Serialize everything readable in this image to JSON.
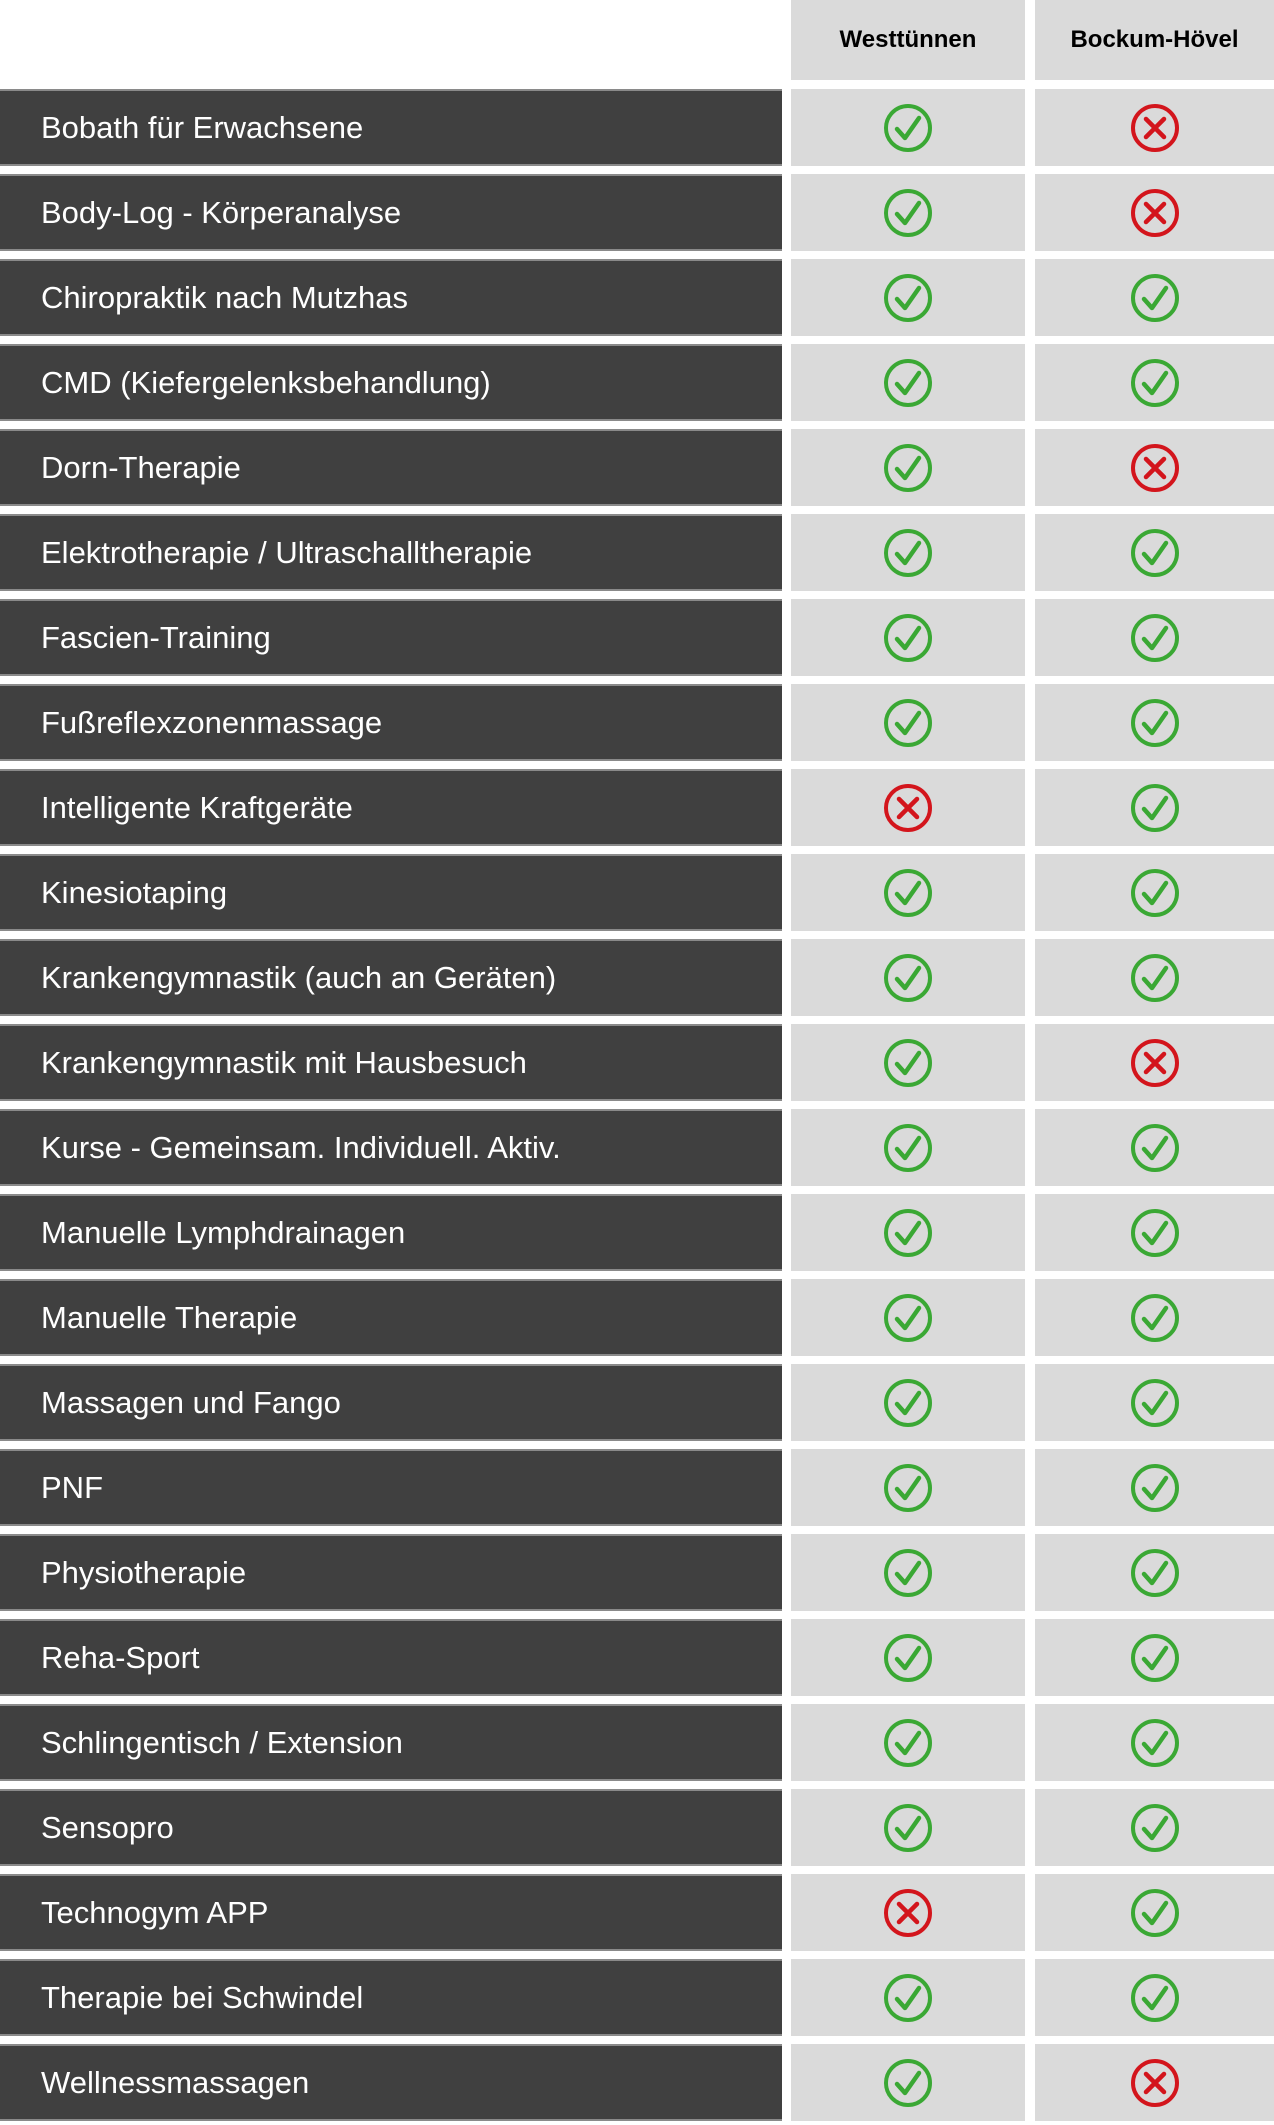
{
  "columns": [
    "Westtünnen",
    "Bockum-Hövel"
  ],
  "colors": {
    "yes": "#3aa834",
    "no": "#d3151c",
    "row_bg": "#404040",
    "cell_bg": "#dadada"
  },
  "icons": {
    "yes": "check-circle-icon",
    "no": "x-circle-icon"
  },
  "rows": [
    {
      "label": "Bobath für Erwachsene",
      "values": [
        true,
        false
      ]
    },
    {
      "label": "Body-Log - Körperanalyse",
      "values": [
        true,
        false
      ]
    },
    {
      "label": "Chiropraktik nach Mutzhas",
      "values": [
        true,
        true
      ]
    },
    {
      "label": "CMD (Kiefergelenksbehandlung)",
      "values": [
        true,
        true
      ]
    },
    {
      "label": "Dorn-Therapie",
      "values": [
        true,
        false
      ]
    },
    {
      "label": "Elektrotherapie / Ultraschalltherapie",
      "values": [
        true,
        true
      ]
    },
    {
      "label": "Fascien-Training",
      "values": [
        true,
        true
      ]
    },
    {
      "label": "Fußreflexzonenmassage",
      "values": [
        true,
        true
      ]
    },
    {
      "label": "Intelligente Kraftgeräte",
      "values": [
        false,
        true
      ]
    },
    {
      "label": "Kinesiotaping",
      "values": [
        true,
        true
      ]
    },
    {
      "label": "Krankengymnastik (auch an Geräten)",
      "values": [
        true,
        true
      ]
    },
    {
      "label": "Krankengymnastik mit Hausbesuch",
      "values": [
        true,
        false
      ]
    },
    {
      "label": "Kurse - Gemeinsam. Individuell. Aktiv.",
      "values": [
        true,
        true
      ]
    },
    {
      "label": "Manuelle Lymphdrainagen",
      "values": [
        true,
        true
      ]
    },
    {
      "label": "Manuelle Therapie",
      "values": [
        true,
        true
      ]
    },
    {
      "label": "Massagen und Fango",
      "values": [
        true,
        true
      ]
    },
    {
      "label": "PNF",
      "values": [
        true,
        true
      ]
    },
    {
      "label": "Physiotherapie",
      "values": [
        true,
        true
      ]
    },
    {
      "label": "Reha-Sport",
      "values": [
        true,
        true
      ]
    },
    {
      "label": "Schlingentisch / Extension",
      "values": [
        true,
        true
      ]
    },
    {
      "label": "Sensopro",
      "values": [
        true,
        true
      ]
    },
    {
      "label": "Technogym APP",
      "values": [
        false,
        true
      ]
    },
    {
      "label": "Therapie bei Schwindel",
      "values": [
        true,
        true
      ]
    },
    {
      "label": "Wellnessmassagen",
      "values": [
        true,
        false
      ]
    }
  ]
}
